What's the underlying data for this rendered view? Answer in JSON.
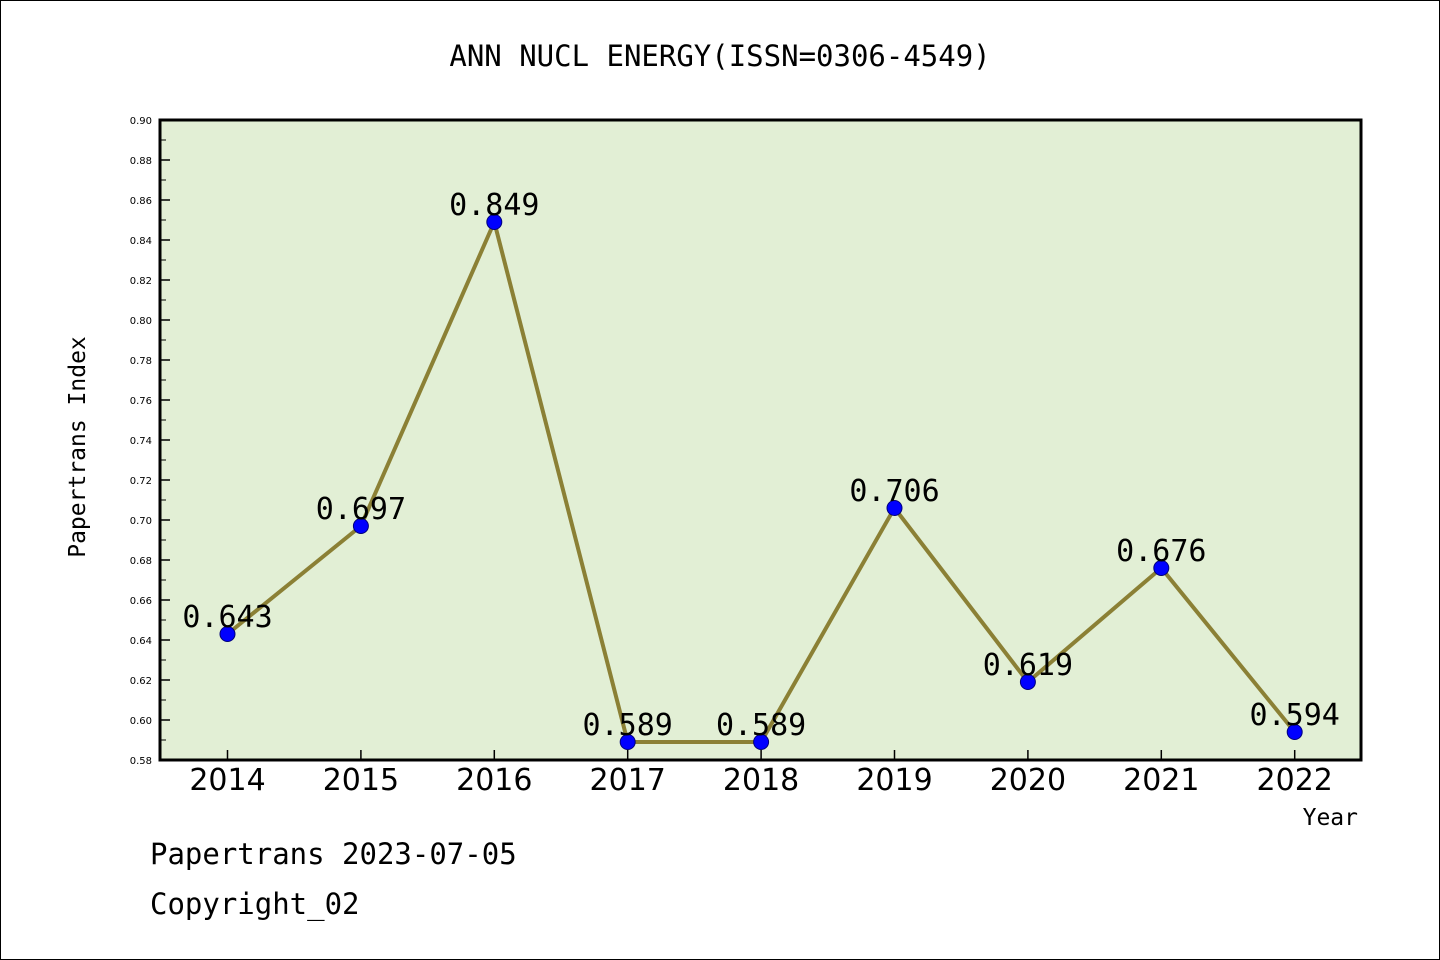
{
  "chart_data": {
    "type": "line",
    "title": "ANN NUCL ENERGY(ISSN=0306-4549)",
    "xlabel": "Year",
    "ylabel": "Papertrans Index",
    "categories": [
      "2014",
      "2015",
      "2016",
      "2017",
      "2018",
      "2019",
      "2020",
      "2021",
      "2022"
    ],
    "series": [
      {
        "values": [
          0.643,
          0.697,
          0.849,
          0.589,
          0.589,
          0.706,
          0.619,
          0.676,
          0.594
        ],
        "labels": [
          "0.643",
          "0.697",
          "0.849",
          "0.589",
          "0.589",
          "0.706",
          "0.619",
          "0.676",
          "0.594"
        ],
        "line_color": "#8b8035",
        "marker_color": "#0000ff"
      }
    ],
    "ylim": [
      0.58,
      0.9
    ],
    "y_ticks": [
      "0.58",
      "0.60",
      "0.62",
      "0.64",
      "0.66",
      "0.68",
      "0.70",
      "0.72",
      "0.74",
      "0.76",
      "0.78",
      "0.80",
      "0.82",
      "0.84",
      "0.86",
      "0.88",
      "0.90"
    ],
    "grid": false,
    "plot_background": "#e2efd5"
  },
  "footer": {
    "date_line": "Papertrans 2023-07-05",
    "copyright": "Copyright_02"
  }
}
